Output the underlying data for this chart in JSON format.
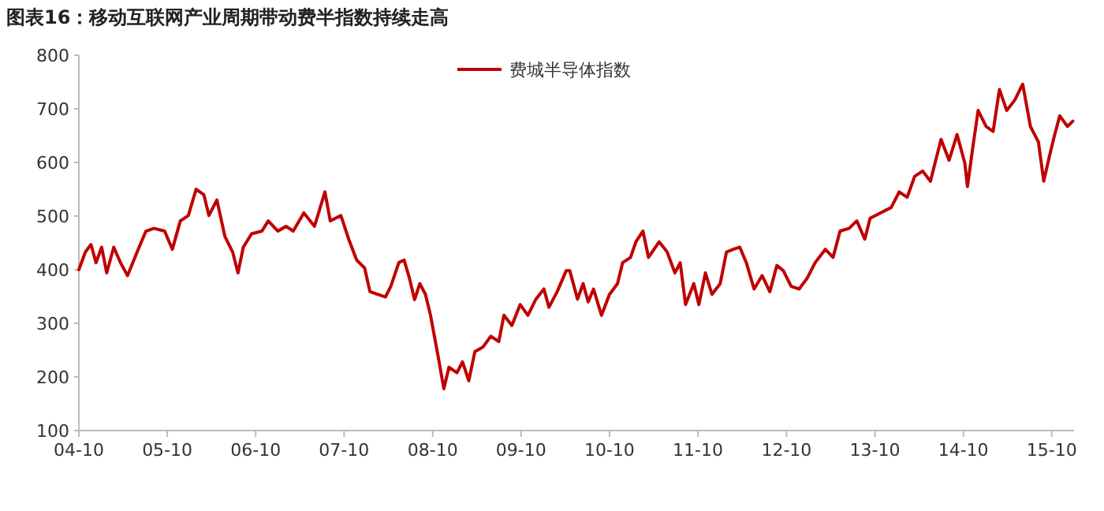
{
  "chart_data": {
    "type": "line",
    "title": "图表16：移动互联网产业周期带动费半指数持续走高",
    "x": [
      "2004-10-01",
      "2004-10-28",
      "2004-11-20",
      "2004-12-11",
      "2005-01-03",
      "2005-01-24",
      "2005-02-22",
      "2005-03-22",
      "2005-04-20",
      "2005-06-03",
      "2005-07-05",
      "2005-08-07",
      "2005-09-20",
      "2005-10-22",
      "2005-11-24",
      "2005-12-27",
      "2006-01-28",
      "2006-03-01",
      "2006-03-22",
      "2006-04-24",
      "2006-05-27",
      "2006-06-28",
      "2006-07-20",
      "2006-08-11",
      "2006-09-14",
      "2006-10-27",
      "2006-11-22",
      "2007-01-01",
      "2007-02-03",
      "2007-03-05",
      "2007-04-18",
      "2007-06-01",
      "2007-07-14",
      "2007-08-05",
      "2007-09-18",
      "2007-10-20",
      "2007-11-22",
      "2007-12-25",
      "2008-01-16",
      "2008-02-18",
      "2008-03-20",
      "2008-04-11",
      "2008-05-14",
      "2008-06-05",
      "2008-06-27",
      "2008-07-18",
      "2008-08-09",
      "2008-09-01",
      "2008-09-22",
      "2008-10-24",
      "2008-11-16",
      "2008-12-07",
      "2009-01-09",
      "2009-02-01",
      "2009-02-27",
      "2009-03-24",
      "2009-04-27",
      "2009-05-29",
      "2009-07-01",
      "2009-07-22",
      "2009-08-24",
      "2009-09-27",
      "2009-10-29",
      "2009-12-01",
      "2010-01-03",
      "2010-01-24",
      "2010-02-27",
      "2010-04-05",
      "2010-04-20",
      "2010-05-22",
      "2010-06-14",
      "2010-07-05",
      "2010-07-27",
      "2010-08-29",
      "2010-10-01",
      "2010-11-03",
      "2010-11-24",
      "2010-12-27",
      "2011-01-18",
      "2011-02-16",
      "2011-03-11",
      "2011-04-24",
      "2011-05-27",
      "2011-06-28",
      "2011-07-20",
      "2011-08-11",
      "2011-09-14",
      "2011-10-05",
      "2011-11-01",
      "2011-11-28",
      "2012-01-01",
      "2012-01-27",
      "2012-02-24",
      "2012-03-22",
      "2012-04-18",
      "2012-05-20",
      "2012-06-22",
      "2012-07-24",
      "2012-08-22",
      "2012-09-18",
      "2012-10-20",
      "2012-11-22",
      "2012-12-25",
      "2013-01-27",
      "2013-03-10",
      "2013-04-11",
      "2013-05-10",
      "2013-06-16",
      "2013-07-18",
      "2013-08-20",
      "2013-09-11",
      "2013-10-24",
      "2013-12-07",
      "2014-01-09",
      "2014-02-11",
      "2014-03-14",
      "2014-04-16",
      "2014-05-18",
      "2014-07-01",
      "2014-08-03",
      "2014-09-05",
      "2014-10-07",
      "2014-10-18",
      "2014-11-09",
      "2014-12-01",
      "2015-01-03",
      "2015-02-01",
      "2015-02-27",
      "2015-03-29",
      "2015-05-01",
      "2015-06-03",
      "2015-07-05",
      "2015-08-07",
      "2015-08-29",
      "2015-09-20",
      "2015-10-11",
      "2015-11-03",
      "2015-12-05",
      "2015-12-27"
    ],
    "series": [
      {
        "name": "费城半导体指数",
        "color": "#c00000",
        "values": [
          400,
          433,
          447,
          413,
          442,
          394,
          442,
          413,
          389,
          438,
          472,
          477,
          472,
          438,
          491,
          501,
          550,
          540,
          501,
          530,
          462,
          433,
          394,
          442,
          467,
          472,
          491,
          472,
          481,
          472,
          506,
          481,
          545,
          491,
          501,
          457,
          418,
          403,
          359,
          354,
          349,
          369,
          413,
          418,
          384,
          344,
          374,
          354,
          315,
          237,
          178,
          218,
          208,
          228,
          193,
          247,
          256,
          276,
          266,
          315,
          296,
          335,
          315,
          345,
          364,
          330,
          359,
          398,
          398,
          345,
          374,
          340,
          364,
          315,
          354,
          374,
          413,
          423,
          452,
          472,
          423,
          452,
          433,
          394,
          413,
          335,
          374,
          335,
          394,
          354,
          374,
          433,
          438,
          442,
          413,
          364,
          389,
          359,
          408,
          398,
          369,
          364,
          384,
          413,
          438,
          423,
          472,
          477,
          491,
          457,
          496,
          506,
          516,
          545,
          535,
          574,
          584,
          565,
          643,
          604,
          652,
          599,
          555,
          628,
          697,
          667,
          658,
          736,
          697,
          716,
          746,
          667,
          638,
          565,
          609,
          648,
          687,
          667,
          677
        ]
      }
    ],
    "xlim": [
      "2004-10-01",
      "2016-01-01"
    ],
    "xticks": [
      {
        "value": "2004-10",
        "label": "04-10"
      },
      {
        "value": "2005-10",
        "label": "05-10"
      },
      {
        "value": "2006-10",
        "label": "06-10"
      },
      {
        "value": "2007-10",
        "label": "07-10"
      },
      {
        "value": "2008-10",
        "label": "08-10"
      },
      {
        "value": "2009-10",
        "label": "09-10"
      },
      {
        "value": "2010-10",
        "label": "10-10"
      },
      {
        "value": "2011-10",
        "label": "11-10"
      },
      {
        "value": "2012-10",
        "label": "12-10"
      },
      {
        "value": "2013-10",
        "label": "13-10"
      },
      {
        "value": "2014-10",
        "label": "14-10"
      },
      {
        "value": "2015-10",
        "label": "15-10"
      }
    ],
    "ylim": [
      100,
      800
    ],
    "yticks": [
      100,
      200,
      300,
      400,
      500,
      600,
      700,
      800
    ],
    "legend": "top",
    "grid": false
  }
}
